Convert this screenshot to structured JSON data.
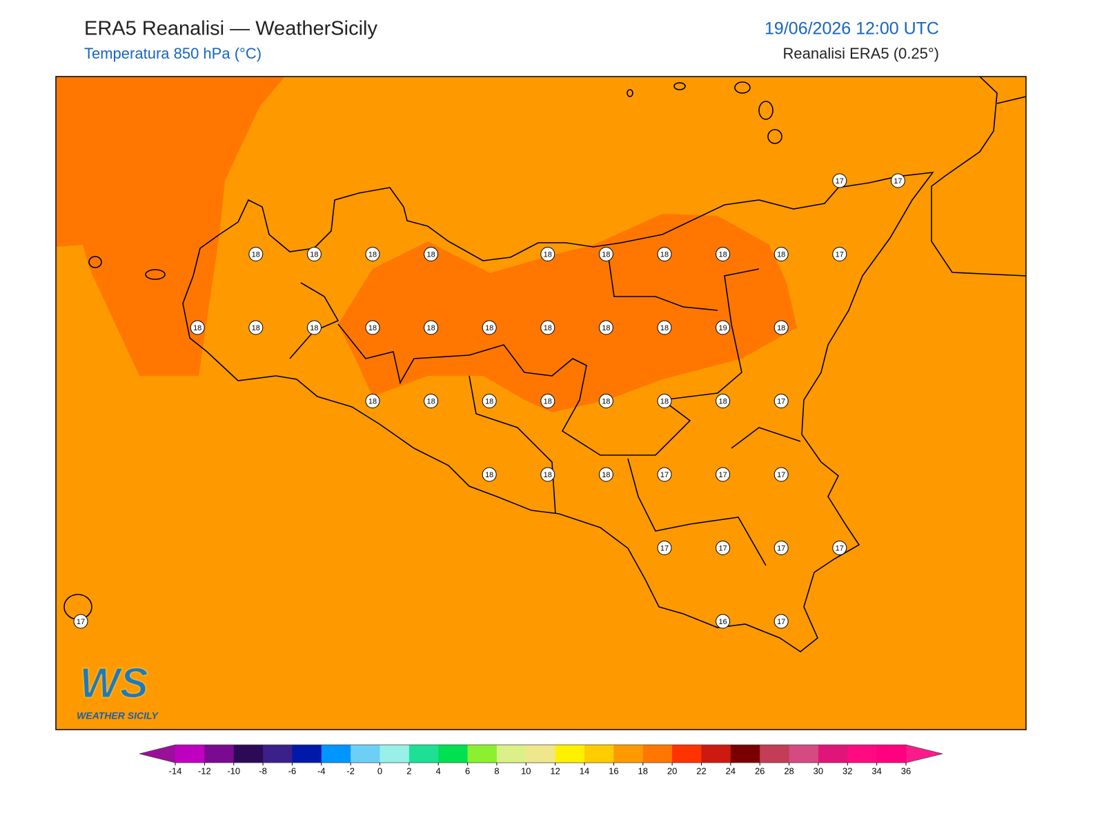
{
  "header": {
    "title": "ERA5 Reanalisi — WeatherSicily",
    "subtitle": "Temperatura 850 hPa (°C)",
    "datetime": "19/06/2026 12:00 UTC",
    "source": "Reanalisi ERA5 (0.25°)"
  },
  "stations": {
    "rows": [
      [
        null,
        null,
        null,
        null,
        null,
        null,
        null,
        null,
        null,
        null,
        null,
        null,
        null,
        17,
        17
      ],
      [
        null,
        null,
        null,
        18,
        18,
        18,
        18,
        null,
        18,
        18,
        18,
        18,
        18,
        17,
        null
      ],
      [
        null,
        null,
        18,
        18,
        18,
        18,
        18,
        18,
        18,
        18,
        18,
        19,
        18,
        null,
        null
      ],
      [
        null,
        null,
        null,
        null,
        null,
        18,
        18,
        18,
        18,
        18,
        18,
        18,
        17,
        null,
        null
      ],
      [
        null,
        null,
        null,
        null,
        null,
        null,
        null,
        18,
        18,
        18,
        17,
        17,
        17,
        null,
        null
      ],
      [
        null,
        null,
        null,
        null,
        null,
        null,
        null,
        null,
        null,
        null,
        17,
        17,
        17,
        17,
        null
      ],
      [
        17,
        null,
        null,
        null,
        null,
        null,
        null,
        null,
        null,
        null,
        null,
        16,
        17,
        null,
        null
      ]
    ]
  },
  "colorbar": {
    "ticks": [
      -14,
      -12,
      -10,
      -8,
      -6,
      -4,
      -2,
      0,
      2,
      4,
      6,
      8,
      10,
      12,
      14,
      16,
      18,
      20,
      22,
      24,
      26,
      28,
      30,
      32,
      34,
      36
    ],
    "colors": [
      "#bf00bf",
      "#7a0a8f",
      "#2d0a57",
      "#3a2088",
      "#0019a8",
      "#0096ff",
      "#6dcff6",
      "#98f0e8",
      "#1ee094",
      "#00e050",
      "#8cf031",
      "#dcf08a",
      "#f0e68c",
      "#fff000",
      "#ffcc00",
      "#ff9900",
      "#ff7700",
      "#ff3300",
      "#cc1a10",
      "#7a0000",
      "#c23d55",
      "#d44a82",
      "#e0157a",
      "#ff0a80",
      "#ff0080"
    ],
    "under_color": "#9b0f9b",
    "over_color": "#ff1a8c"
  },
  "logo": {
    "text": "WS",
    "caption": "WEATHER SICILY"
  }
}
